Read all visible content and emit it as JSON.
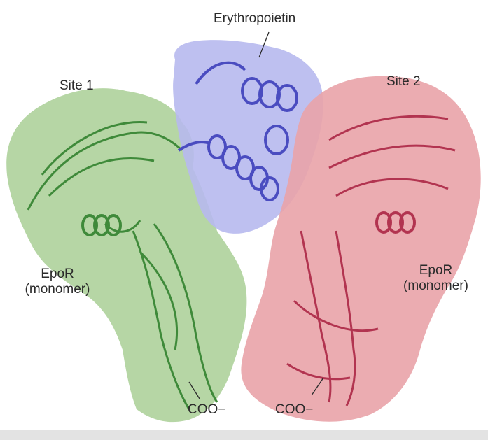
{
  "labels": {
    "erythropoietin": "Erythropoietin",
    "site1": "Site 1",
    "site2": "Site 2",
    "epor_left_line1": "EpoR",
    "epor_left_line2": "(monomer)",
    "epor_right_line1": "EpoR",
    "epor_right_line2": "(monomer)",
    "coo_left": "COO−",
    "coo_right": "COO−"
  },
  "colors": {
    "green_surface": "#a9cf95",
    "green_ribbon": "#3f8a3a",
    "blue_surface": "#b7b9ee",
    "blue_ribbon": "#4a4cc0",
    "pink_surface": "#e9a3a9",
    "pink_ribbon": "#b23450",
    "footer": "#e3e3e3"
  }
}
